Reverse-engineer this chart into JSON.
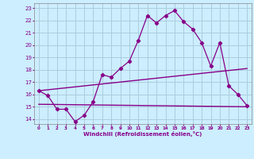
{
  "xlabel": "Windchill (Refroidissement éolien,°C)",
  "background_color": "#cceeff",
  "grid_color": "#aaccdd",
  "line_color": "#880088",
  "x_ticks": [
    0,
    1,
    2,
    3,
    4,
    5,
    6,
    7,
    8,
    9,
    10,
    11,
    12,
    13,
    14,
    15,
    16,
    17,
    18,
    19,
    20,
    21,
    22,
    23
  ],
  "y_ticks": [
    14,
    15,
    16,
    17,
    18,
    19,
    20,
    21,
    22,
    23
  ],
  "ylim": [
    13.6,
    23.4
  ],
  "xlim": [
    -0.5,
    23.5
  ],
  "series1_x": [
    0,
    1,
    2,
    3,
    4,
    5,
    6,
    7,
    8,
    9,
    10,
    11,
    12,
    13,
    14,
    15,
    16,
    17,
    18,
    19,
    20,
    21,
    22,
    23
  ],
  "series1_y": [
    16.3,
    15.9,
    14.8,
    14.8,
    13.8,
    14.3,
    15.4,
    17.6,
    17.4,
    18.1,
    18.7,
    20.4,
    22.4,
    21.8,
    22.4,
    22.8,
    21.9,
    21.3,
    20.2,
    18.3,
    20.2,
    16.7,
    16.0,
    15.1
  ],
  "series2_x": [
    0,
    23
  ],
  "series2_y": [
    15.2,
    15.0
  ],
  "series3_x": [
    0,
    23
  ],
  "series3_y": [
    16.3,
    18.1
  ]
}
